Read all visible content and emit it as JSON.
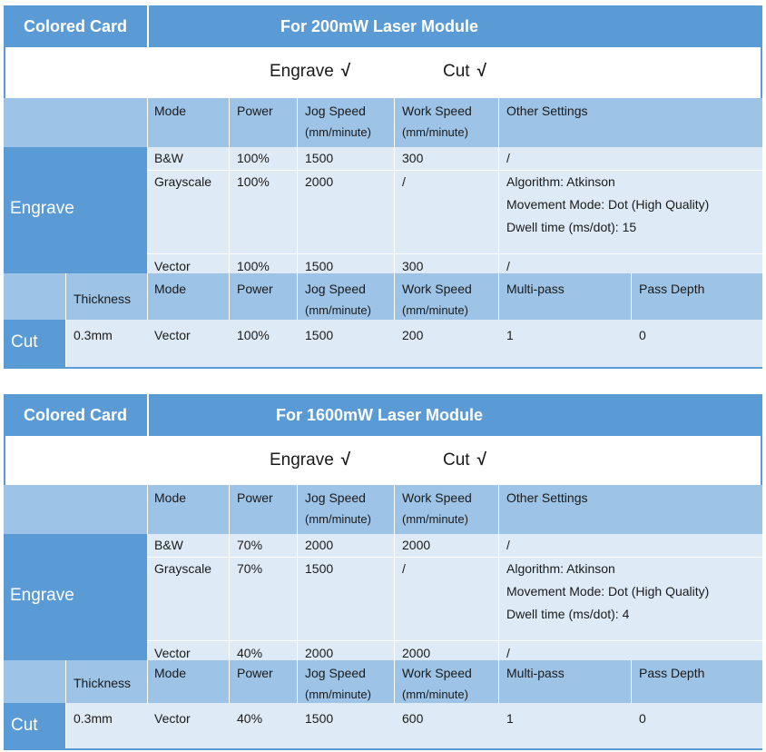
{
  "tables": [
    {
      "header_left": "Colored Card",
      "header_right": "For 200mW Laser Module",
      "engrave_check": "Engrave",
      "cut_check": "Cut",
      "check_mark": "√",
      "engrave_head": [
        "Mode",
        "Power",
        "Jog Speed",
        "(mm/minute)",
        "Work Speed",
        "(mm/minute)",
        "Other Settings"
      ],
      "engrave_label": "Engrave",
      "engrave_rows": [
        {
          "mode": "B&W",
          "power": "100%",
          "jog": "1500",
          "work": "300",
          "other": [
            "/"
          ]
        },
        {
          "mode": "Grayscale",
          "power": "100%",
          "jog": "2000",
          "work": "/",
          "other": [
            "Algorithm: Atkinson",
            "Movement Mode: Dot (High Quality)",
            "Dwell time (ms/dot): 15"
          ]
        },
        {
          "mode": "Vector",
          "power": "100%",
          "jog": "1500",
          "work": "300",
          "other": [
            "/"
          ]
        }
      ],
      "cut_head": [
        "Thickness",
        "Mode",
        "Power",
        "Jog Speed",
        "(mm/minute)",
        "Work Speed",
        "(mm/minute)",
        "Multi-pass",
        "Pass Depth"
      ],
      "cut_label": "Cut",
      "cut_row": {
        "thickness": "0.3mm",
        "mode": "Vector",
        "power": "100%",
        "jog": "1500",
        "work": "200",
        "multipass": "1",
        "depth": "0"
      }
    },
    {
      "header_left": "Colored Card",
      "header_right": "For 1600mW Laser Module",
      "engrave_check": "Engrave",
      "cut_check": "Cut",
      "check_mark": "√",
      "engrave_head": [
        "Mode",
        "Power",
        "Jog Speed",
        "(mm/minute)",
        "Work Speed",
        "(mm/minute)",
        "Other Settings"
      ],
      "engrave_label": "Engrave",
      "engrave_rows": [
        {
          "mode": "B&W",
          "power": "70%",
          "jog": "2000",
          "work": "2000",
          "other": [
            "/"
          ]
        },
        {
          "mode": "Grayscale",
          "power": "70%",
          "jog": "1500",
          "work": "/",
          "other": [
            "Algorithm: Atkinson",
            "Movement Mode: Dot (High Quality)",
            "Dwell time (ms/dot): 4"
          ]
        },
        {
          "mode": "Vector",
          "power": "40%",
          "jog": "2000",
          "work": "2000",
          "other": [
            "/"
          ]
        }
      ],
      "cut_head": [
        "Thickness",
        "Mode",
        "Power",
        "Jog Speed",
        "(mm/minute)",
        "Work Speed",
        "(mm/minute)",
        "Multi-pass",
        "Pass Depth"
      ],
      "cut_label": "Cut",
      "cut_row": {
        "thickness": "0.3mm",
        "mode": "Vector",
        "power": "40%",
        "jog": "1500",
        "work": "600",
        "multipass": "1",
        "depth": "0"
      }
    }
  ]
}
